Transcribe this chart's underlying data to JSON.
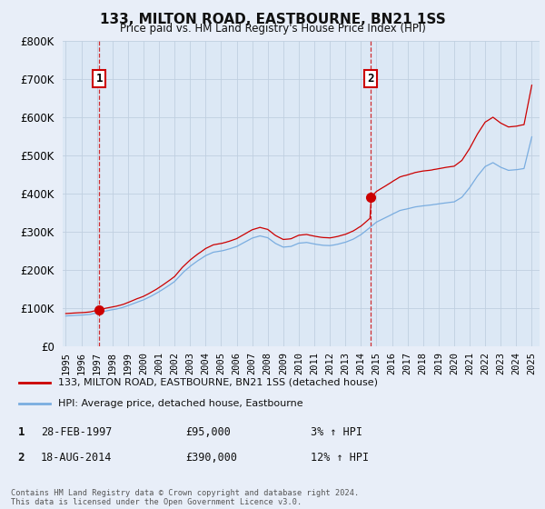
{
  "title": "133, MILTON ROAD, EASTBOURNE, BN21 1SS",
  "subtitle": "Price paid vs. HM Land Registry's House Price Index (HPI)",
  "legend_line1": "133, MILTON ROAD, EASTBOURNE, BN21 1SS (detached house)",
  "legend_line2": "HPI: Average price, detached house, Eastbourne",
  "transaction1_label": "1",
  "transaction1_date": "28-FEB-1997",
  "transaction1_price": "£95,000",
  "transaction1_hpi": "3% ↑ HPI",
  "transaction1_year": 1997.16,
  "transaction1_value": 95000,
  "transaction2_label": "2",
  "transaction2_date": "18-AUG-2014",
  "transaction2_price": "£390,000",
  "transaction2_hpi": "12% ↑ HPI",
  "transaction2_year": 2014.63,
  "transaction2_value": 390000,
  "footer": "Contains HM Land Registry data © Crown copyright and database right 2024.\nThis data is licensed under the Open Government Licence v3.0.",
  "hpi_color": "#7aade0",
  "price_color": "#cc0000",
  "background_color": "#e8eef8",
  "plot_bg_color": "#dce8f5",
  "grid_color": "#c0cfe0",
  "ylim": [
    0,
    800000
  ],
  "xlim_start": 1994.8,
  "xlim_end": 2025.5,
  "yticks": [
    0,
    100000,
    200000,
    300000,
    400000,
    500000,
    600000,
    700000,
    800000
  ],
  "xticks": [
    1995,
    1996,
    1997,
    1998,
    1999,
    2000,
    2001,
    2002,
    2003,
    2004,
    2005,
    2006,
    2007,
    2008,
    2009,
    2010,
    2011,
    2012,
    2013,
    2014,
    2015,
    2016,
    2017,
    2018,
    2019,
    2020,
    2021,
    2022,
    2023,
    2024,
    2025
  ]
}
